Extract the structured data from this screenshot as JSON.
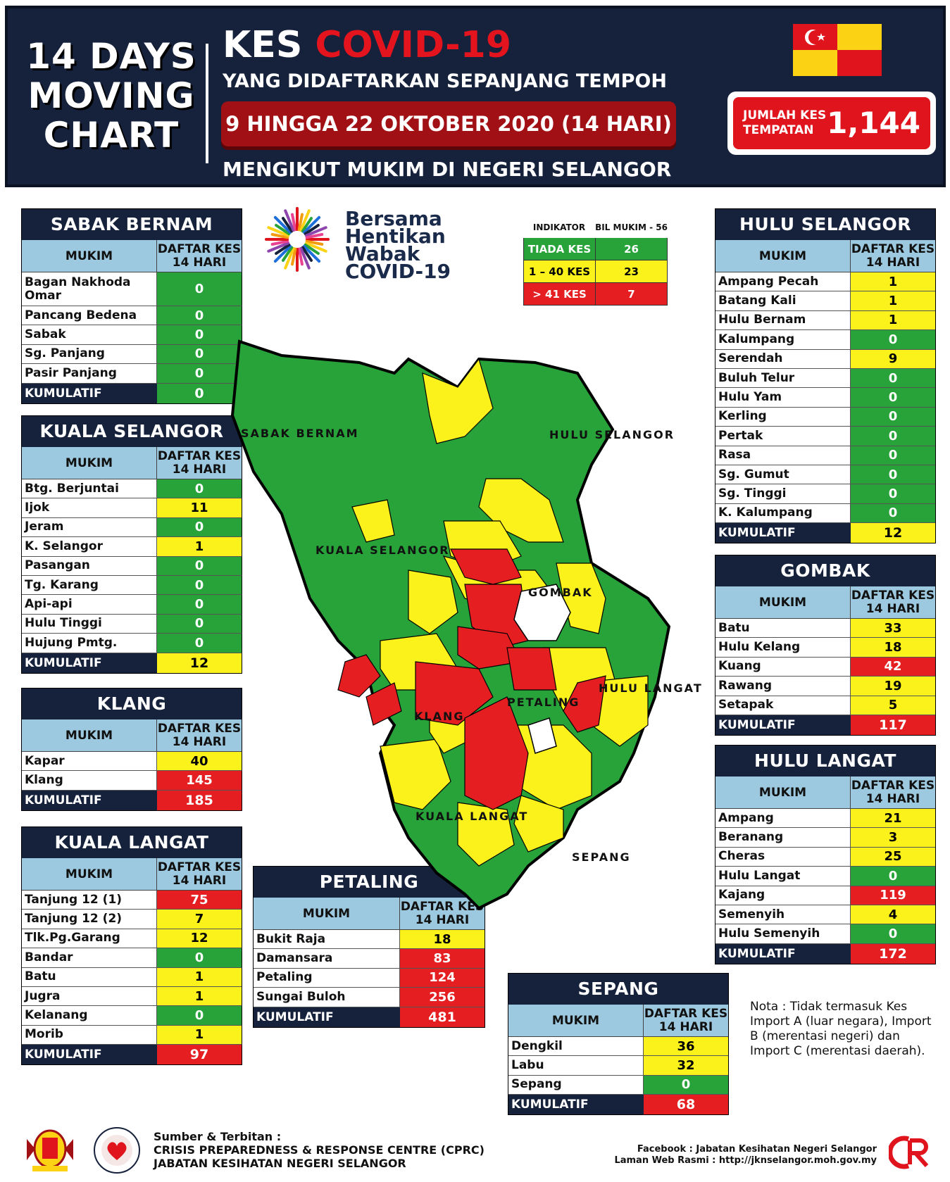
{
  "header": {
    "left_line1": "14 DAYS",
    "left_line2": "MOVING",
    "left_line3": "CHART",
    "title_prefix": "KES",
    "title_highlight": "COVID-19",
    "subtitle": "YANG DIDAFTARKAN SEPANJANG TEMPOH",
    "period": "9 HINGGA 22 OKTOBER 2020 (14 HARI)",
    "subtitle2": "MENGIKUT MUKIM DI NEGERI SELANGOR",
    "total_label_1": "JUMLAH KES",
    "total_label_2": "TEMPATAN",
    "total_value": "1,144"
  },
  "colors": {
    "green": "#27a33a",
    "yellow": "#fbf21c",
    "red": "#e41e21",
    "navy": "#16223b",
    "light_blue": "#9cc9df"
  },
  "logo": {
    "line1": "Bersama",
    "line2": "Hentikan",
    "line3": "Wabak",
    "line4": "COVID-19"
  },
  "indicator": {
    "head_a": "INDIKATOR",
    "head_b": "BIL MUKIM - 56",
    "rows": [
      {
        "label": "TIADA KES",
        "value": "26",
        "color": "green"
      },
      {
        "label": "1 – 40 KES",
        "value": "23",
        "color": "yellow"
      },
      {
        "label": "> 41 KES",
        "value": "7",
        "color": "red"
      }
    ]
  },
  "col_mukim": "MUKIM",
  "col_kes_1": "DAFTAR KES",
  "col_kes_2": "14 HARI",
  "kumulatif": "KUMULATIF",
  "tables": {
    "sabak_bernam": {
      "title": "SABAK BERNAM",
      "rows": [
        [
          "Bagan Nakhoda Omar",
          "0"
        ],
        [
          "Pancang Bedena",
          "0"
        ],
        [
          "Sabak",
          "0"
        ],
        [
          "Sg. Panjang",
          "0"
        ],
        [
          "Pasir Panjang",
          "0"
        ]
      ],
      "total": "0"
    },
    "kuala_selangor": {
      "title": "KUALA SELANGOR",
      "rows": [
        [
          "Btg. Berjuntai",
          "0"
        ],
        [
          "Ijok",
          "11"
        ],
        [
          "Jeram",
          "0"
        ],
        [
          "K. Selangor",
          "1"
        ],
        [
          "Pasangan",
          "0"
        ],
        [
          "Tg. Karang",
          "0"
        ],
        [
          "Api-api",
          "0"
        ],
        [
          "Hulu Tinggi",
          "0"
        ],
        [
          "Hujung Pmtg.",
          "0"
        ]
      ],
      "total": "12"
    },
    "klang": {
      "title": "KLANG",
      "rows": [
        [
          "Kapar",
          "40"
        ],
        [
          "Klang",
          "145"
        ]
      ],
      "total": "185"
    },
    "kuala_langat": {
      "title": "KUALA LANGAT",
      "rows": [
        [
          "Tanjung 12 (1)",
          "75"
        ],
        [
          "Tanjung 12 (2)",
          "7"
        ],
        [
          "Tlk.Pg.Garang",
          "12"
        ],
        [
          "Bandar",
          "0"
        ],
        [
          "Batu",
          "1"
        ],
        [
          "Jugra",
          "1"
        ],
        [
          "Kelanang",
          "0"
        ],
        [
          "Morib",
          "1"
        ]
      ],
      "total": "97"
    },
    "petaling": {
      "title": "PETALING",
      "rows": [
        [
          "Bukit Raja",
          "18"
        ],
        [
          "Damansara",
          "83"
        ],
        [
          "Petaling",
          "124"
        ],
        [
          "Sungai Buloh",
          "256"
        ]
      ],
      "total": "481"
    },
    "sepang": {
      "title": "SEPANG",
      "rows": [
        [
          "Dengkil",
          "36"
        ],
        [
          "Labu",
          "32"
        ],
        [
          "Sepang",
          "0"
        ]
      ],
      "total": "68"
    },
    "hulu_selangor": {
      "title": "HULU SELANGOR",
      "rows": [
        [
          "Ampang Pecah",
          "1"
        ],
        [
          "Batang Kali",
          "1"
        ],
        [
          "Hulu Bernam",
          "1"
        ],
        [
          "Kalumpang",
          "0"
        ],
        [
          "Serendah",
          "9"
        ],
        [
          "Buluh Telur",
          "0"
        ],
        [
          "Hulu Yam",
          "0"
        ],
        [
          "Kerling",
          "0"
        ],
        [
          "Pertak",
          "0"
        ],
        [
          "Rasa",
          "0"
        ],
        [
          "Sg. Gumut",
          "0"
        ],
        [
          "Sg. Tinggi",
          "0"
        ],
        [
          "K. Kalumpang",
          "0"
        ]
      ],
      "total": "12"
    },
    "gombak": {
      "title": "GOMBAK",
      "rows": [
        [
          "Batu",
          "33"
        ],
        [
          "Hulu Kelang",
          "18"
        ],
        [
          "Kuang",
          "42"
        ],
        [
          "Rawang",
          "19"
        ],
        [
          "Setapak",
          "5"
        ]
      ],
      "total": "117"
    },
    "hulu_langat": {
      "title": "HULU LANGAT",
      "rows": [
        [
          "Ampang",
          "21"
        ],
        [
          "Beranang",
          "3"
        ],
        [
          "Cheras",
          "25"
        ],
        [
          "Hulu Langat",
          "0"
        ],
        [
          "Kajang",
          "119"
        ],
        [
          "Semenyih",
          "4"
        ],
        [
          "Hulu Semenyih",
          "0"
        ]
      ],
      "total": "172"
    }
  },
  "map_labels": {
    "sabak_bernam": "SABAK BERNAM",
    "hulu_selangor": "HULU SELANGOR",
    "kuala_selangor": "KUALA SELANGOR",
    "gombak": "GOMBAK",
    "hulu_langat": "HULU LANGAT",
    "petaling": "PETALING",
    "klang": "KLANG",
    "kuala_langat": "KUALA LANGAT",
    "sepang": "SEPANG"
  },
  "nota": "Nota : Tidak termasuk Kes Import A (luar negara), Import B (merentasi negeri) dan Import C (merentasi daerah).",
  "footer": {
    "source_1": "Sumber & Terbitan :",
    "source_2": "CRISIS PREPAREDNESS & RESPONSE CENTRE (CPRC)",
    "source_3": "JABATAN KESIHATAN NEGERI SELANGOR",
    "facebook": "Facebook : Jabatan Kesihatan Negeri Selangor",
    "web": "Laman Web Rasmi : http://jknselangor.moh.gov.my"
  }
}
